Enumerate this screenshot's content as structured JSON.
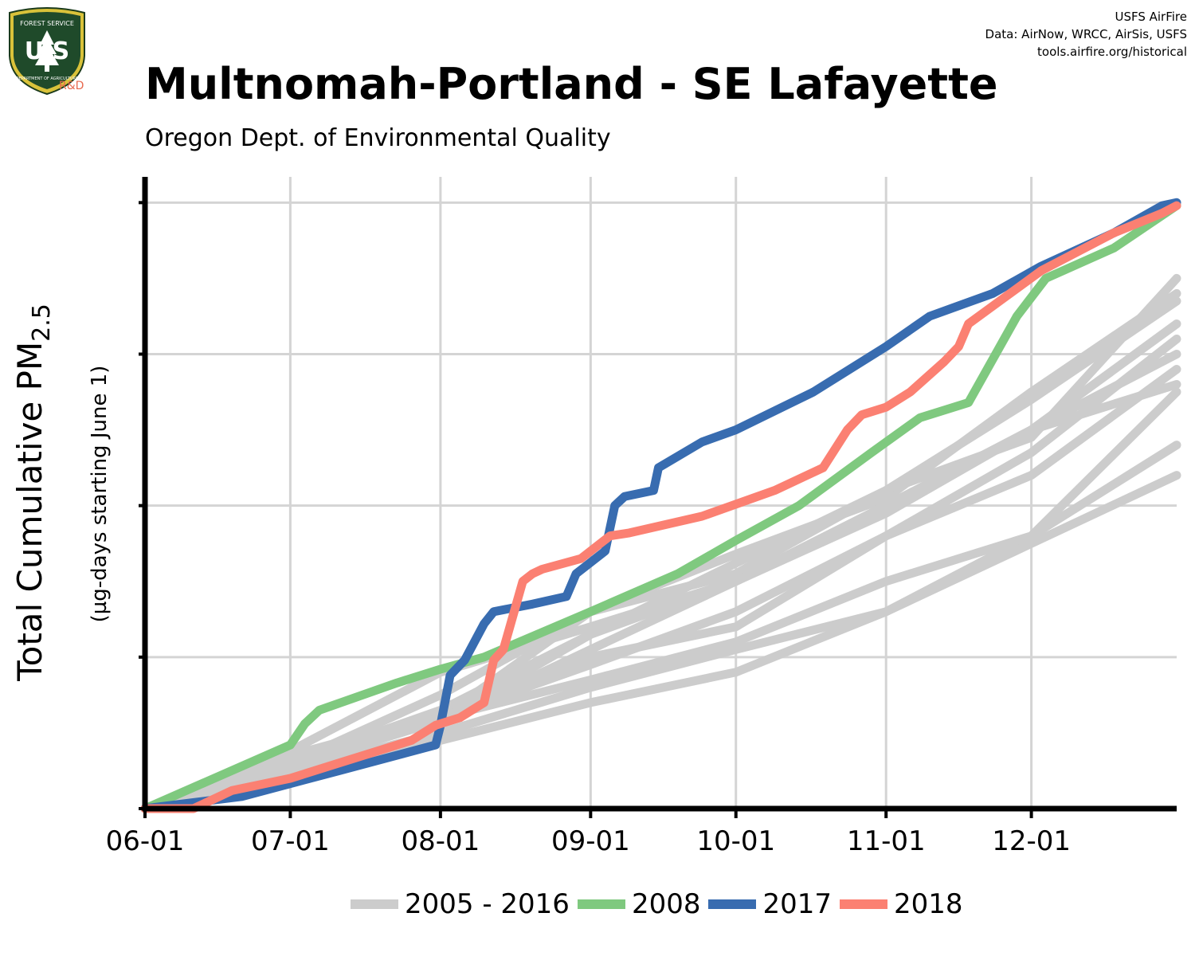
{
  "header": {
    "title": "Multnomah-Portland - SE Lafayette",
    "subtitle": "Oregon Dept. of Environmental Quality",
    "credits": [
      "USFS AirFire",
      "Data: AirNow, WRCC, AirSis, USFS",
      "tools.airfire.org/historical"
    ],
    "logo": {
      "top_text": "FOREST SERVICE",
      "letters": "U S",
      "bottom_text": "DEPARTMENT OF AGRICULTURE",
      "badge": "R&D"
    }
  },
  "colors": {
    "gray": "#cccccc",
    "green": "#7fc97f",
    "blue": "#386cb0",
    "salmon": "#fb8072",
    "grid": "#d4d4d4"
  },
  "chart_data": {
    "type": "line",
    "ylabel_main": "Total Cumulative PM",
    "ylabel_sub": "2.5",
    "ylabel_units": "(µg-days starting June 1)",
    "x_tick_labels": [
      "06-01",
      "07-01",
      "08-01",
      "09-01",
      "10-01",
      "11-01",
      "12-01"
    ],
    "x_tick_days": [
      0,
      30,
      61,
      92,
      122,
      153,
      183
    ],
    "xlim": [
      0,
      213
    ],
    "ylim": [
      0,
      4.17
    ],
    "y_tick_values": [
      0,
      1,
      2,
      3,
      4
    ],
    "y_tick_labels": [
      "",
      "",
      "",
      "",
      ""
    ],
    "grid": true,
    "legend_position": "bottom",
    "legend": [
      {
        "label": "2005 - 2016",
        "color": "#cccccc"
      },
      {
        "label": "2008",
        "color": "#7fc97f"
      },
      {
        "label": "2017",
        "color": "#386cb0"
      },
      {
        "label": "2018",
        "color": "#fb8072"
      }
    ],
    "background_series": [
      {
        "x": [
          0,
          30,
          61,
          92,
          122,
          153,
          183,
          213
        ],
        "y": [
          0,
          0.3,
          0.6,
          1.3,
          1.68,
          2.05,
          2.75,
          3.4
        ]
      },
      {
        "x": [
          0,
          30,
          61,
          92,
          122,
          153,
          183,
          213
        ],
        "y": [
          0,
          0.35,
          0.62,
          1.0,
          1.2,
          1.8,
          2.35,
          3.1
        ]
      },
      {
        "x": [
          0,
          30,
          61,
          92,
          122,
          153,
          183,
          213
        ],
        "y": [
          0,
          0.3,
          0.75,
          1.3,
          1.55,
          2.1,
          2.45,
          3.5
        ]
      },
      {
        "x": [
          0,
          30,
          61,
          92,
          122,
          153,
          183,
          213
        ],
        "y": [
          0,
          0.38,
          0.9,
          1.2,
          1.5,
          2.0,
          2.5,
          2.8
        ]
      },
      {
        "x": [
          0,
          30,
          61,
          92,
          122,
          153,
          183,
          213
        ],
        "y": [
          0,
          0.28,
          0.58,
          1.15,
          1.5,
          2.0,
          2.5,
          3.0
        ]
      },
      {
        "x": [
          0,
          30,
          61,
          92,
          122,
          153,
          183,
          213
        ],
        "y": [
          0,
          0.25,
          0.5,
          0.8,
          1.05,
          1.3,
          1.8,
          2.4
        ]
      },
      {
        "x": [
          0,
          30,
          61,
          92,
          122,
          153,
          183,
          213
        ],
        "y": [
          0,
          0.3,
          0.65,
          1.15,
          1.62,
          2.1,
          2.7,
          3.35
        ]
      },
      {
        "x": [
          0,
          30,
          61,
          92,
          122,
          153,
          183,
          213
        ],
        "y": [
          0,
          0.28,
          0.58,
          1.05,
          1.5,
          1.95,
          2.5,
          3.2
        ]
      },
      {
        "x": [
          0,
          30,
          61,
          92,
          122,
          153,
          183,
          213
        ],
        "y": [
          0,
          0.22,
          0.45,
          0.7,
          0.9,
          1.3,
          1.75,
          2.2
        ]
      },
      {
        "x": [
          0,
          30,
          61,
          92,
          122,
          153,
          183,
          213
        ],
        "y": [
          0,
          0.3,
          0.6,
          0.95,
          1.3,
          1.8,
          2.2,
          2.9
        ]
      },
      {
        "x": [
          0,
          30,
          61,
          92,
          122,
          153,
          183,
          213
        ],
        "y": [
          0,
          0.27,
          0.6,
          0.85,
          1.1,
          1.5,
          1.8,
          2.75
        ]
      }
    ],
    "series": [
      {
        "name": "2008",
        "color": "#7fc97f",
        "x": [
          0,
          30,
          33,
          36,
          52,
          61,
          70,
          92,
          110,
          122,
          135,
          150,
          160,
          170,
          180,
          186,
          200,
          213
        ],
        "y": [
          0,
          0.42,
          0.56,
          0.65,
          0.83,
          0.92,
          1.0,
          1.3,
          1.55,
          1.77,
          2.0,
          2.35,
          2.58,
          2.68,
          3.25,
          3.5,
          3.7,
          3.98
        ]
      },
      {
        "name": "2017",
        "color": "#386cb0",
        "x": [
          0,
          20,
          40,
          60,
          61,
          63,
          66,
          70,
          72,
          80,
          87,
          89,
          95,
          97,
          99,
          105,
          106,
          115,
          122,
          138,
          153,
          162,
          175,
          185,
          200,
          210,
          213
        ],
        "y": [
          0,
          0.08,
          0.25,
          0.42,
          0.55,
          0.88,
          0.98,
          1.22,
          1.3,
          1.35,
          1.4,
          1.55,
          1.7,
          2.0,
          2.06,
          2.1,
          2.25,
          2.42,
          2.5,
          2.75,
          3.05,
          3.25,
          3.4,
          3.58,
          3.8,
          3.98,
          4.0
        ]
      },
      {
        "name": "2018",
        "color": "#fb8072",
        "x": [
          0,
          10,
          18,
          30,
          40,
          55,
          60,
          65,
          70,
          72,
          74,
          78,
          80,
          82,
          90,
          96,
          100,
          115,
          130,
          140,
          145,
          148,
          153,
          158,
          165,
          168,
          170,
          185,
          200,
          210,
          213
        ],
        "y": [
          0,
          0.0,
          0.12,
          0.2,
          0.3,
          0.45,
          0.55,
          0.6,
          0.7,
          0.98,
          1.05,
          1.5,
          1.55,
          1.58,
          1.65,
          1.8,
          1.82,
          1.93,
          2.1,
          2.25,
          2.5,
          2.6,
          2.65,
          2.75,
          2.95,
          3.05,
          3.2,
          3.55,
          3.8,
          3.93,
          3.98
        ]
      }
    ]
  }
}
